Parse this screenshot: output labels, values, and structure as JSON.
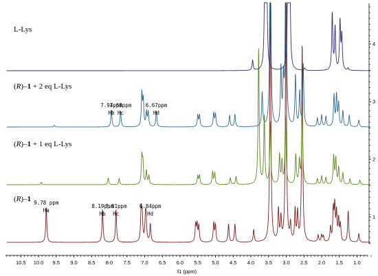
{
  "chart_data": {
    "type": "line",
    "xlabel": "f1 (ppm)",
    "x_reversed": true,
    "xlim": [
      11.0,
      0.6
    ],
    "x_ticks": [
      "10.5",
      "10.0",
      "9.5",
      "9.0",
      "8.5",
      "8.0",
      "7.5",
      "7.0",
      "6.5",
      "6.0",
      "5.5",
      "5.0",
      "4.5",
      "4.0",
      "3.5",
      "3.0",
      "2.5",
      "2.0",
      "1.5",
      "1.0"
    ],
    "y_ticks_right": [
      "1",
      "2",
      "3",
      "4"
    ],
    "series": [
      {
        "name_parts": [
          "(",
          "R",
          ")–",
          "1",
          ""
        ],
        "color": "#7a1e1e",
        "offset": 1,
        "peaks": [
          [
            9.78,
            0.62
          ],
          [
            8.19,
            0.58
          ],
          [
            7.81,
            0.58
          ],
          [
            7.1,
            0.55
          ],
          [
            7.07,
            0.45
          ],
          [
            6.98,
            0.35
          ],
          [
            6.96,
            0.4
          ],
          [
            6.84,
            0.32
          ],
          [
            5.56,
            0.3
          ],
          [
            5.52,
            0.3
          ],
          [
            5.47,
            0.28
          ],
          [
            5.05,
            0.33
          ],
          [
            5.0,
            0.3
          ],
          [
            4.63,
            0.32
          ],
          [
            4.45,
            0.32
          ],
          [
            3.92,
            0.22
          ],
          [
            3.45,
            4.5
          ],
          [
            3.22,
            0.55
          ],
          [
            3.15,
            0.4
          ],
          [
            3.01,
            4.5
          ],
          [
            2.88,
            0.3
          ],
          [
            2.75,
            0.55
          ],
          [
            2.68,
            0.5
          ],
          [
            2.55,
            3.5
          ],
          [
            2.1,
            0.12
          ],
          [
            2.0,
            0.12
          ],
          [
            1.95,
            0.1
          ],
          [
            1.75,
            0.25
          ],
          [
            1.67,
            0.55
          ],
          [
            1.63,
            0.6
          ],
          [
            1.58,
            0.5
          ],
          [
            1.52,
            0.38
          ],
          [
            1.47,
            0.3
          ],
          [
            1.25,
            0.55
          ],
          [
            0.95,
            0.15
          ]
        ],
        "annotations": [
          {
            "lines": [
              "9.78 ppm",
              "Ha"
            ],
            "ppm": 9.78
          },
          {
            "lines": [
              "8.19ppm",
              "Hb"
            ],
            "ppm": 8.19
          },
          {
            "lines": [
              "7.81ppm",
              "Hc"
            ],
            "ppm": 7.81
          },
          {
            "lines": [
              "6.84ppm",
              "Hd"
            ],
            "ppm": 6.84
          }
        ]
      },
      {
        "name_parts": [
          "(",
          "R",
          ")–",
          "1",
          " + 1 eq L-Lys"
        ],
        "color": "#5a8a1e",
        "offset": 2,
        "peaks": [
          [
            9.92,
            0.04
          ],
          [
            8.03,
            0.12
          ],
          [
            7.72,
            0.11
          ],
          [
            7.08,
            0.48
          ],
          [
            7.05,
            0.36
          ],
          [
            6.95,
            0.24
          ],
          [
            6.88,
            0.15
          ],
          [
            5.5,
            0.15
          ],
          [
            5.45,
            0.16
          ],
          [
            5.08,
            0.22
          ],
          [
            5.02,
            0.2
          ],
          [
            4.58,
            0.12
          ],
          [
            4.42,
            0.14
          ],
          [
            3.78,
            2.4
          ],
          [
            3.62,
            1.2
          ],
          [
            3.45,
            1.1
          ],
          [
            3.19,
            0.52
          ],
          [
            3.12,
            0.4
          ],
          [
            3.02,
            1.2
          ],
          [
            2.73,
            0.52
          ],
          [
            2.63,
            0.4
          ],
          [
            2.55,
            1.4
          ],
          [
            2.12,
            0.1
          ],
          [
            2.0,
            0.15
          ],
          [
            1.88,
            0.12
          ],
          [
            1.66,
            0.5
          ],
          [
            1.6,
            0.45
          ],
          [
            1.52,
            0.3
          ],
          [
            1.4,
            0.2
          ],
          [
            1.2,
            0.1
          ],
          [
            0.92,
            0.08
          ]
        ]
      },
      {
        "name_parts": [
          "(",
          "R",
          ")–",
          "1",
          " + 2 eq L-Lys"
        ],
        "color": "#2e6a8a",
        "offset": 3,
        "peaks": [
          [
            9.55,
            0.03
          ],
          [
            7.94,
            0.3
          ],
          [
            7.68,
            0.28
          ],
          [
            7.08,
            0.58
          ],
          [
            7.04,
            0.45
          ],
          [
            6.95,
            0.25
          ],
          [
            6.9,
            0.25
          ],
          [
            6.67,
            0.28
          ],
          [
            5.5,
            0.2
          ],
          [
            5.45,
            0.2
          ],
          [
            5.05,
            0.24
          ],
          [
            5.0,
            0.22
          ],
          [
            4.6,
            0.2
          ],
          [
            4.45,
            0.22
          ],
          [
            3.68,
            0.6
          ],
          [
            3.45,
            4.2
          ],
          [
            3.15,
            1.0
          ],
          [
            3.08,
            0.75
          ],
          [
            3.01,
            4.2
          ],
          [
            2.74,
            0.9
          ],
          [
            2.62,
            0.6
          ],
          [
            2.52,
            1.1
          ],
          [
            2.12,
            0.15
          ],
          [
            2.0,
            0.2
          ],
          [
            1.88,
            0.18
          ],
          [
            1.65,
            0.55
          ],
          [
            1.58,
            0.55
          ],
          [
            1.52,
            0.4
          ],
          [
            1.4,
            0.28
          ],
          [
            1.22,
            0.2
          ],
          [
            0.95,
            0.12
          ]
        ],
        "annotations": [
          {
            "lines": [
              "7.94ppm",
              "Hb"
            ],
            "ppm": 7.94
          },
          {
            "lines": [
              "7.68ppm",
              "Hc"
            ],
            "ppm": 7.68
          },
          {
            "lines": [
              "6.67ppm",
              "Hd"
            ],
            "ppm": 6.67
          }
        ]
      },
      {
        "name_parts": [
          "",
          "",
          "",
          "",
          "L-Lys"
        ],
        "color": "#2e2a7a",
        "offset": 4,
        "peaks": [
          [
            3.95,
            0.18
          ],
          [
            3.6,
            2.6
          ],
          [
            3.55,
            1.6
          ],
          [
            2.95,
            2.5
          ],
          [
            2.9,
            1.9
          ],
          [
            1.7,
            1.0
          ],
          [
            1.62,
            0.75
          ],
          [
            1.48,
            0.85
          ],
          [
            1.43,
            0.6
          ],
          [
            2.48,
            0.04
          ],
          [
            1.25,
            0.04
          ]
        ]
      }
    ]
  }
}
